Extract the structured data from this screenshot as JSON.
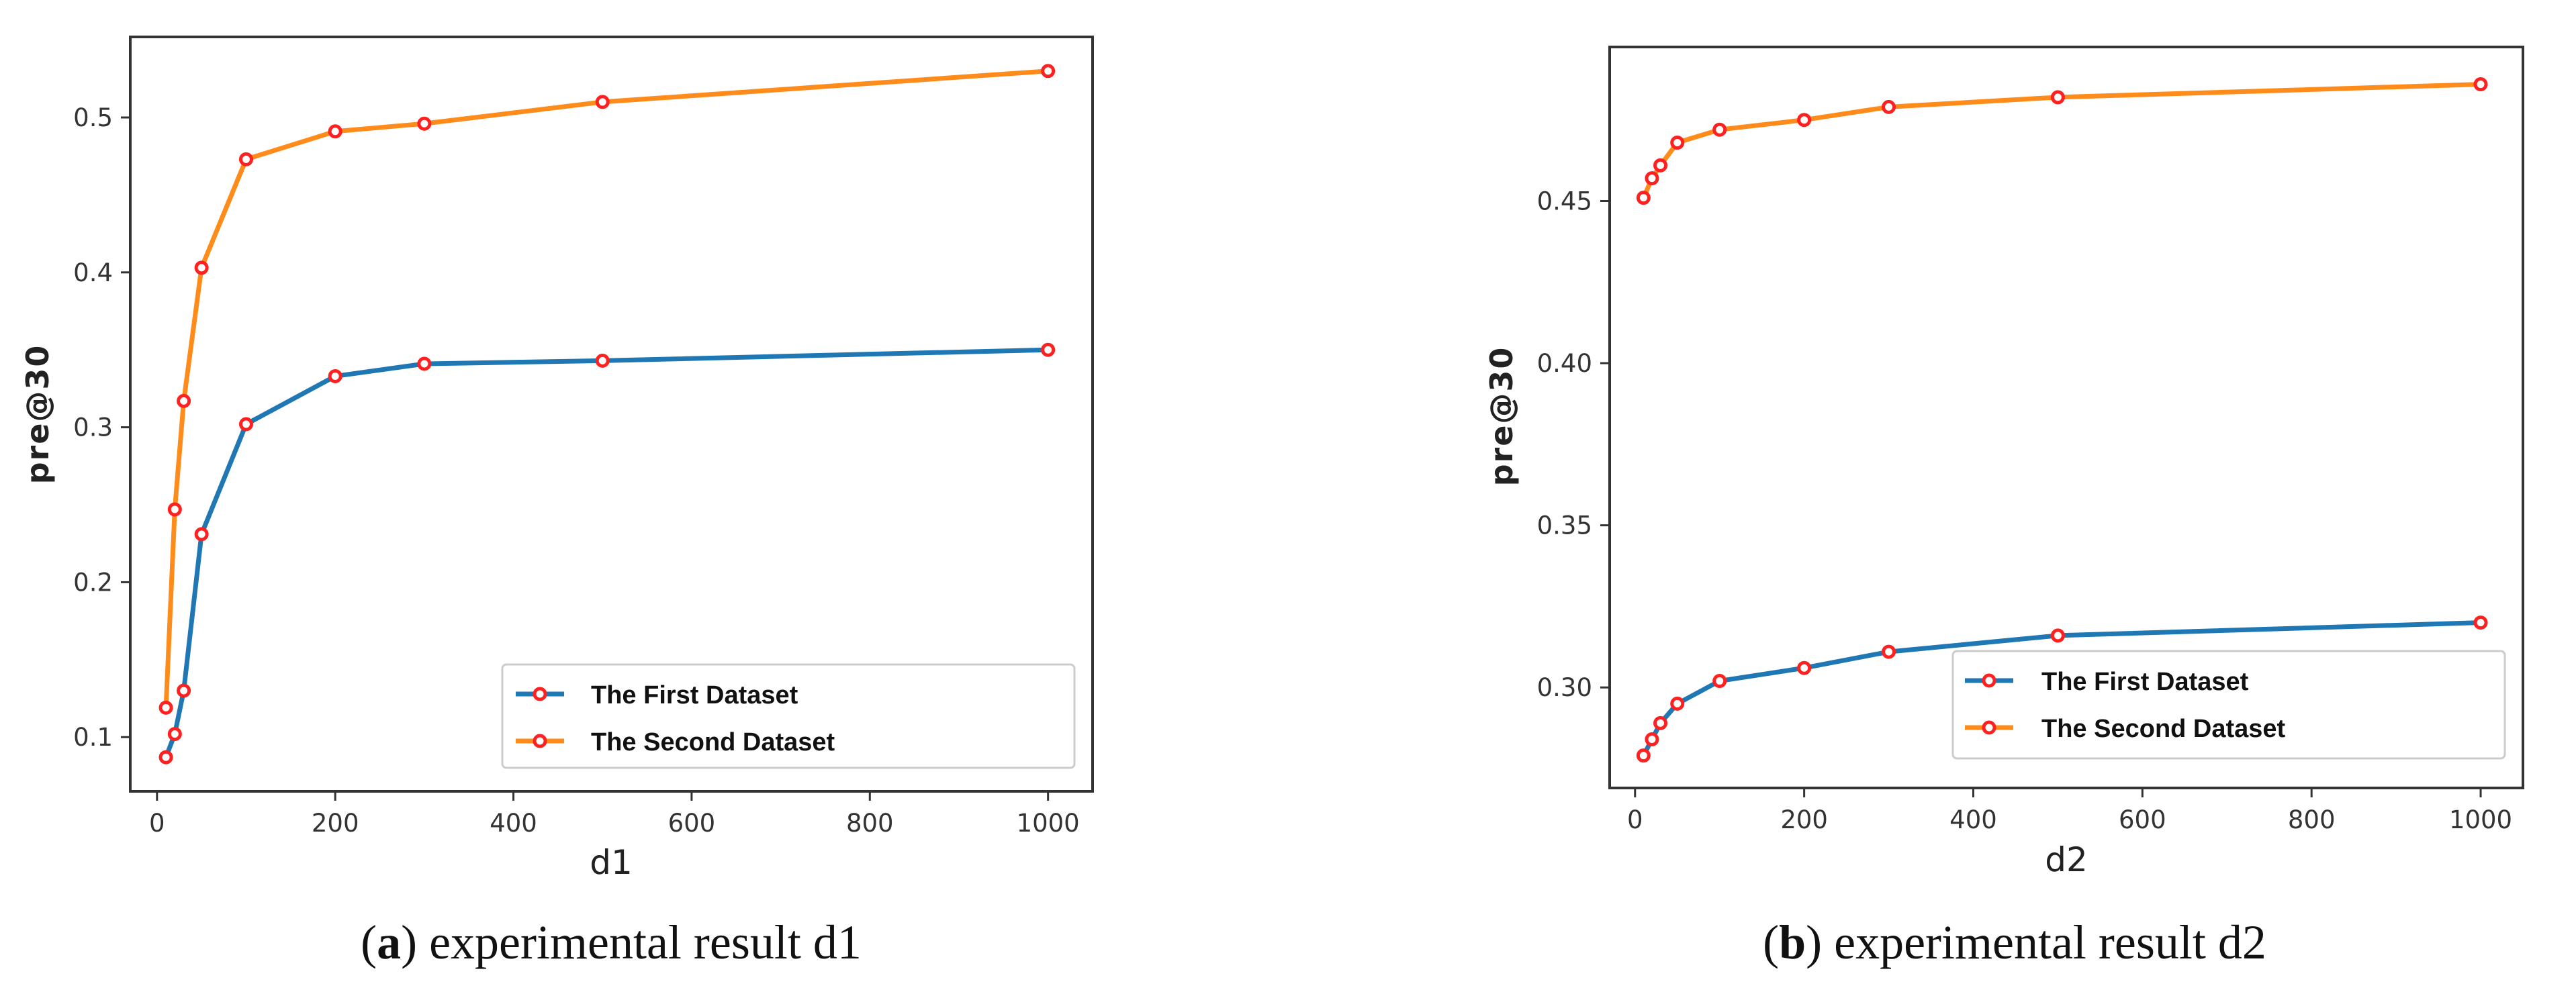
{
  "chart_data": [
    {
      "type": "line",
      "title": "",
      "xlabel": "d1",
      "ylabel": "pre@30",
      "xlim": [
        -30,
        1050
      ],
      "ylim": [
        0.065,
        0.552
      ],
      "xticks": [
        0,
        200,
        400,
        600,
        800,
        1000
      ],
      "xtick_labels": [
        "0",
        "200",
        "400",
        "600",
        "800",
        "1000"
      ],
      "yticks": [
        0.1,
        0.2,
        0.3,
        0.4,
        0.5
      ],
      "ytick_labels": [
        "0.1",
        "0.2",
        "0.3",
        "0.4",
        "0.5"
      ],
      "grid": false,
      "legend_position": "lower-right",
      "x": [
        10,
        20,
        30,
        50,
        100,
        200,
        300,
        500,
        1000
      ],
      "series": [
        {
          "name": "The First Dataset",
          "color": "#1f77b4",
          "marker_color": "#ff2020",
          "values": [
            0.087,
            0.102,
            0.13,
            0.231,
            0.302,
            0.333,
            0.341,
            0.343,
            0.35
          ]
        },
        {
          "name": "The Second Dataset",
          "color": "#ff8c1a",
          "marker_color": "#ff2020",
          "values": [
            0.119,
            0.247,
            0.317,
            0.403,
            0.473,
            0.491,
            0.496,
            0.51,
            0.53
          ]
        }
      ],
      "caption": {
        "letter": "a",
        "text": "experimental result d1"
      }
    },
    {
      "type": "line",
      "title": "",
      "xlabel": "d2",
      "ylabel": "pre@30",
      "xlim": [
        -30,
        1050
      ],
      "ylim": [
        0.269,
        0.4975
      ],
      "xticks": [
        0,
        200,
        400,
        600,
        800,
        1000
      ],
      "xtick_labels": [
        "0",
        "200",
        "400",
        "600",
        "800",
        "1000"
      ],
      "yticks": [
        0.3,
        0.35,
        0.4,
        0.45
      ],
      "ytick_labels": [
        "0.30",
        "0.35",
        "0.40",
        "0.45"
      ],
      "grid": false,
      "legend_position": "lower-right",
      "x": [
        10,
        20,
        30,
        50,
        100,
        200,
        300,
        500,
        1000
      ],
      "series": [
        {
          "name": "The First Dataset",
          "color": "#1f77b4",
          "marker_color": "#ff2020",
          "values": [
            0.279,
            0.284,
            0.289,
            0.295,
            0.302,
            0.306,
            0.311,
            0.316,
            0.32
          ]
        },
        {
          "name": "The Second Dataset",
          "color": "#ff8c1a",
          "marker_color": "#ff2020",
          "values": [
            0.451,
            0.457,
            0.461,
            0.468,
            0.472,
            0.475,
            0.479,
            0.482,
            0.486
          ]
        }
      ],
      "caption": {
        "letter": "b",
        "text": "experimental result d2"
      }
    }
  ]
}
